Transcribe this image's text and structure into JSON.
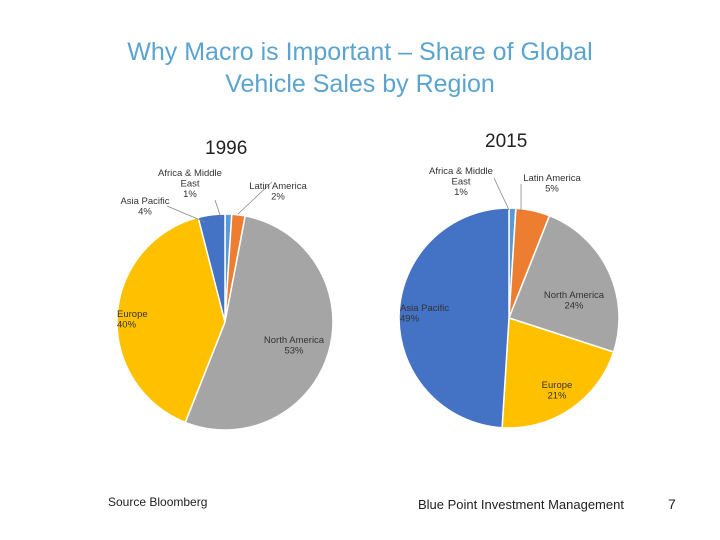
{
  "slide": {
    "title_line1": "Why Macro is Important – Share of Global",
    "title_line2": "Vehicle Sales by Region",
    "source": "Source Bloomberg",
    "company": "Blue Point Investment Management",
    "page_number": "7"
  },
  "chart_data": [
    {
      "type": "pie",
      "title": "1996",
      "slices": [
        {
          "name": "Africa & Middle East",
          "value": 1,
          "label_lines": [
            "Africa & Middle",
            "East",
            "1%"
          ],
          "color": "#5B9BD5"
        },
        {
          "name": "Latin America",
          "value": 2,
          "label_lines": [
            "Latin America",
            "2%"
          ],
          "color": "#ED7D31"
        },
        {
          "name": "North America",
          "value": 53,
          "label_lines": [
            "North America",
            "53%"
          ],
          "color": "#A5A5A5"
        },
        {
          "name": "Europe",
          "value": 40,
          "label_lines": [
            "Europe",
            "40%"
          ],
          "color": "#FFC000"
        },
        {
          "name": "Asia Pacific",
          "value": 4,
          "label_lines": [
            "Asia Pacific",
            "4%"
          ],
          "color": "#4472C4"
        }
      ]
    },
    {
      "type": "pie",
      "title": "2015",
      "slices": [
        {
          "name": "Africa & Middle East",
          "value": 1,
          "label_lines": [
            "Africa & Middle",
            "East",
            "1%"
          ],
          "color": "#5B9BD5"
        },
        {
          "name": "Latin America",
          "value": 5,
          "label_lines": [
            "Latin America",
            "5%"
          ],
          "color": "#ED7D31"
        },
        {
          "name": "North America",
          "value": 24,
          "label_lines": [
            "North America",
            "24%"
          ],
          "color": "#A5A5A5"
        },
        {
          "name": "Europe",
          "value": 21,
          "label_lines": [
            "Europe",
            "21%"
          ],
          "color": "#FFC000"
        },
        {
          "name": "Asia Pacific",
          "value": 49,
          "label_lines": [
            "Asia Pacific",
            "49%"
          ],
          "color": "#4472C4"
        }
      ]
    }
  ]
}
